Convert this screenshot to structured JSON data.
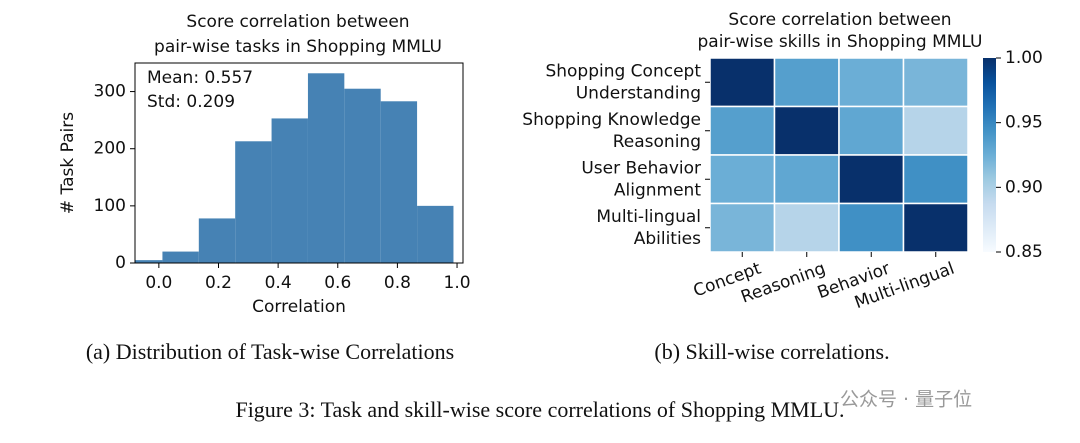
{
  "chart_data": [
    {
      "type": "histogram",
      "title": [
        "Score correlation between",
        "pair-wise tasks in Shopping MMLU"
      ],
      "annotations": [
        "Mean: 0.557",
        "Std: 0.209"
      ],
      "xlabel": "Correlation",
      "ylabel": "# Task Pairs",
      "bins": [
        -0.11,
        0.012,
        0.134,
        0.256,
        0.378,
        0.5,
        0.622,
        0.744,
        0.866,
        0.988
      ],
      "counts": [
        5,
        20,
        78,
        213,
        253,
        332,
        305,
        283,
        100
      ],
      "color": "#4682b4",
      "xlim": [
        -0.08,
        1.02
      ],
      "ylim": [
        0,
        350
      ],
      "xticks": [
        {
          "value": 0,
          "label": "0.0"
        },
        0.2,
        0.4,
        0.6,
        0.8,
        {
          "value": 1,
          "label": "1.0"
        }
      ],
      "yticks": [
        0,
        100,
        200,
        300
      ]
    },
    {
      "type": "heatmap",
      "title": [
        "Score correlation between",
        "pair-wise skills in Shopping MMLU"
      ],
      "x_categories": [
        "Concept",
        "Reasoning",
        "Behavior",
        "Multi-lingual"
      ],
      "y_categories": [
        [
          "Shopping Concept",
          "Understanding"
        ],
        [
          "Shopping Knowledge",
          "Reasoning"
        ],
        [
          "User Behavior",
          "Alignment"
        ],
        [
          "Multi-lingual",
          "Abilities"
        ]
      ],
      "values": [
        [
          1.0,
          0.935,
          0.925,
          0.92
        ],
        [
          0.935,
          1.0,
          0.93,
          0.895
        ],
        [
          0.925,
          0.93,
          1.0,
          0.945
        ],
        [
          0.92,
          0.895,
          0.945,
          1.0
        ]
      ],
      "clim": [
        0.85,
        1.0
      ],
      "colormap": [
        "#f7fbff",
        "#deebf7",
        "#c6dbef",
        "#9ecae1",
        "#6baed6",
        "#4292c6",
        "#2171b5",
        "#08519c",
        "#08306b"
      ],
      "cticks": [
        {
          "value": 1,
          "label": "1.00"
        },
        {
          "value": 0.95,
          "label": "0.95"
        },
        {
          "value": 0.9,
          "label": "0.90"
        },
        {
          "value": 0.85,
          "label": "0.85"
        }
      ]
    }
  ],
  "captions": {
    "a": "(a) Distribution of Task-wise Correlations",
    "b": "(b) Skill-wise correlations.",
    "figure": "Figure 3: Task and skill-wise score correlations of Shopping MMLU.",
    "watermark": "公众号 · 量子位"
  }
}
